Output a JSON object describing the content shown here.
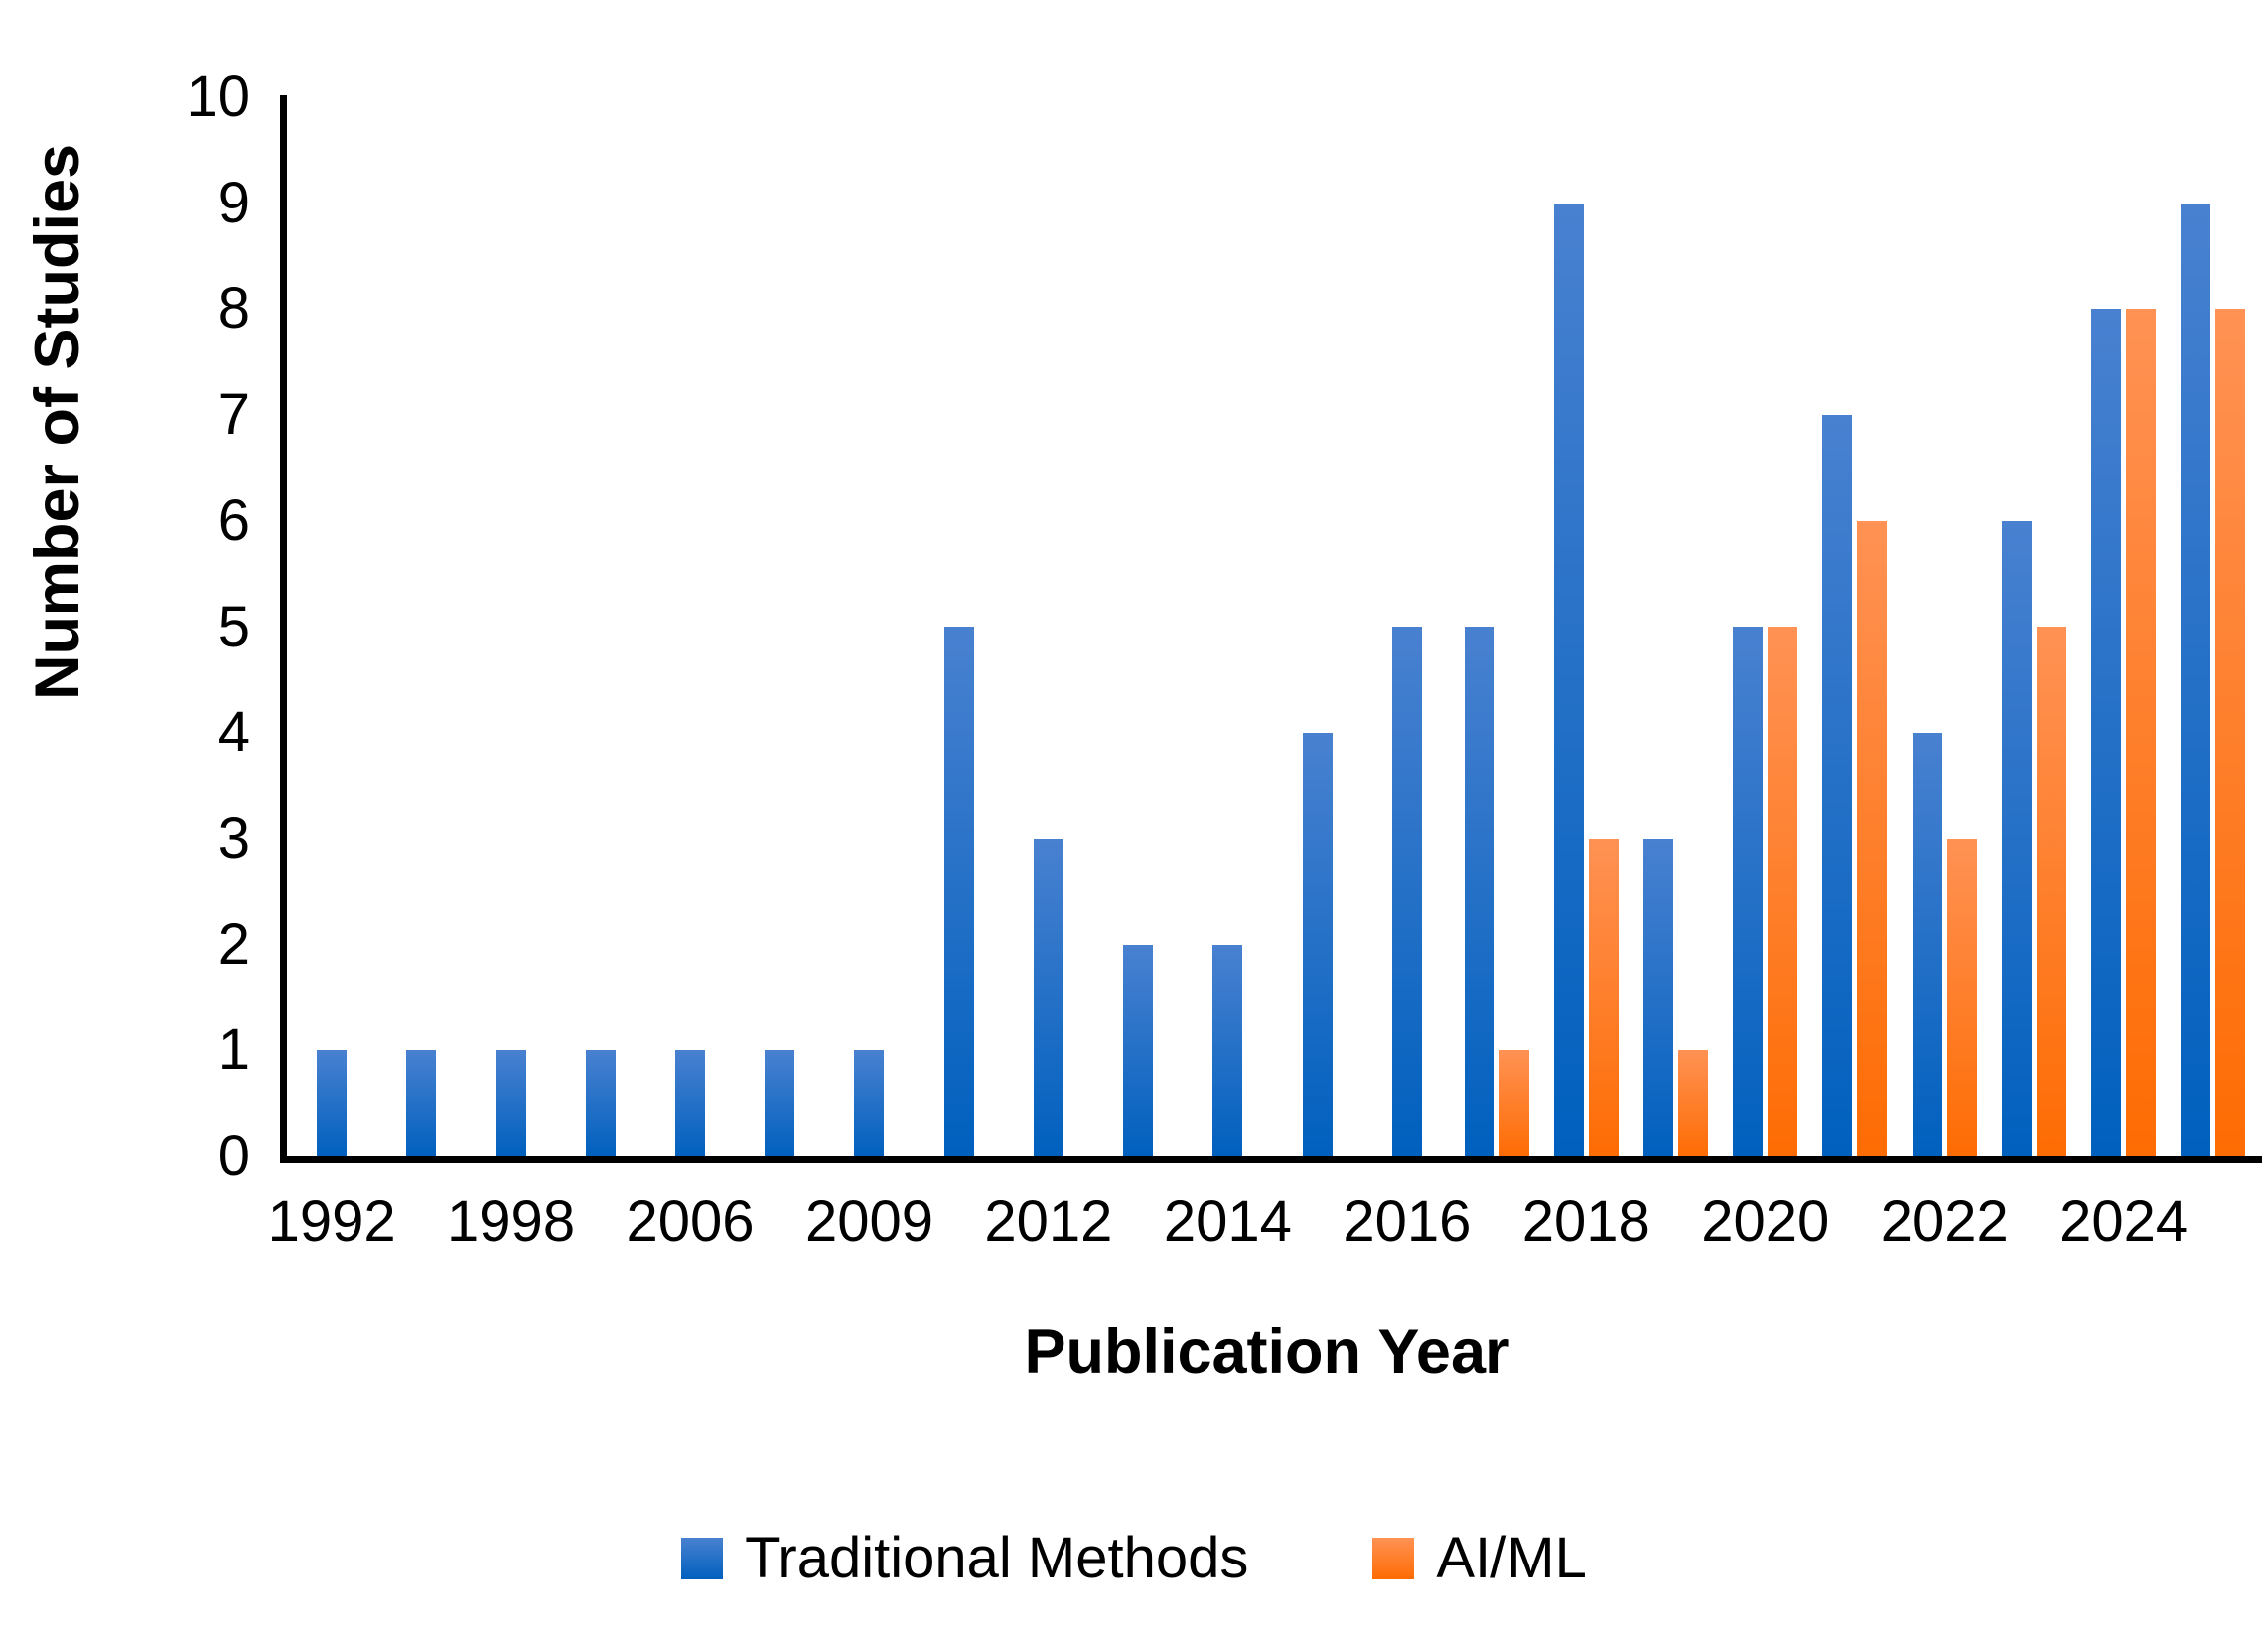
{
  "chart_data": {
    "type": "bar",
    "title": "",
    "xlabel": "Publication Year",
    "ylabel": "Number of Studies",
    "ylim": [
      0,
      10
    ],
    "ytick_labels": [
      "0",
      "1",
      "2",
      "3",
      "4",
      "5",
      "6",
      "7",
      "8",
      "9",
      "10"
    ],
    "grid": false,
    "legend_position": "bottom",
    "axis_color": "#000000",
    "categories": [
      "1992",
      "",
      "1998",
      "",
      "2006",
      "",
      "2009",
      "",
      "2012",
      "",
      "2014",
      "",
      "2016",
      "",
      "2018",
      "",
      "2020",
      "",
      "2022",
      "",
      "2024",
      ""
    ],
    "series": [
      {
        "name": "Traditional Methods",
        "color_top": "#4981D0",
        "color_bottom": "#0060BE",
        "values": [
          1,
          1,
          1,
          1,
          1,
          1,
          1,
          5,
          3,
          2,
          2,
          4,
          5,
          5,
          9,
          3,
          5,
          7,
          4,
          6,
          8,
          9
        ]
      },
      {
        "name": "AI/ML",
        "color_top": "#FF9254",
        "color_bottom": "#FE6C03",
        "values": [
          0,
          0,
          0,
          0,
          0,
          0,
          0,
          0,
          0,
          0,
          0,
          0,
          0,
          1,
          3,
          1,
          5,
          6,
          3,
          5,
          8,
          8
        ]
      }
    ]
  }
}
